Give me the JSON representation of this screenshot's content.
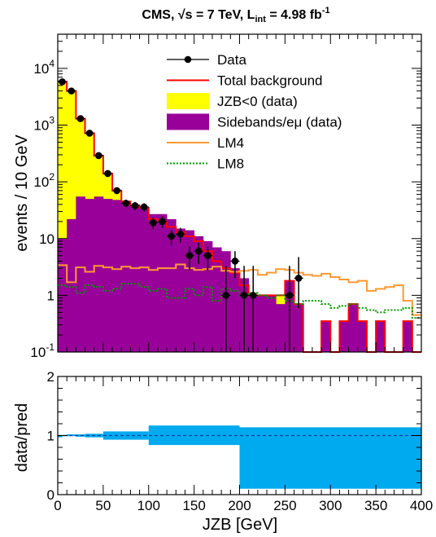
{
  "chart_data": [
    {
      "type": "histogram",
      "title_main": "CMS, √s = 7 TeV, L",
      "title_sub": "int",
      "title_tail": " = 4.98 fb",
      "title_sup": "-1",
      "ylabel": "events / 10 GeV",
      "yscale": "log",
      "ylim": [
        0.1,
        40000
      ],
      "xlim": [
        0,
        400
      ],
      "bin_width": 10,
      "ytick_labels": [
        {
          "base": "10",
          "exp": "-1",
          "value": 0.1
        },
        {
          "base": "1",
          "exp": "",
          "value": 1
        },
        {
          "base": "10",
          "exp": "",
          "value": 10
        },
        {
          "base": "10",
          "exp": "2",
          "value": 100
        },
        {
          "base": "10",
          "exp": "3",
          "value": 1000
        },
        {
          "base": "10",
          "exp": "4",
          "value": 10000
        }
      ],
      "legend_position": "top-right",
      "legend": [
        {
          "label": "Data",
          "style": "marker"
        },
        {
          "label": "Total background",
          "style": "line",
          "color": "#ff0000"
        },
        {
          "label": "JZB<0 (data)",
          "style": "fill",
          "color": "#ffff00"
        },
        {
          "label": "Sidebands/eμ (data)",
          "style": "fill",
          "color": "#990099"
        },
        {
          "label": "LM4",
          "style": "line",
          "color": "#ff9933"
        },
        {
          "label": "LM8",
          "style": "dotted",
          "color": "#009900"
        }
      ],
      "series": [
        {
          "name": "Sidebands/eμ (data)",
          "color": "#990099",
          "values": [
            10,
            22,
            55,
            50,
            55,
            50,
            48,
            45,
            40,
            35,
            27,
            27,
            22,
            15,
            14,
            11,
            9,
            7,
            6,
            3,
            2,
            1,
            1,
            1,
            0.7,
            1.8,
            0.7,
            0,
            0,
            0.35,
            0,
            0.35,
            0.7,
            0.35,
            0,
            0.35,
            0,
            0,
            0.35,
            0
          ]
        },
        {
          "name": "JZB<0 (data)",
          "color": "#ffff00",
          "values": [
            5800,
            4000,
            1300,
            720,
            290,
            140,
            70,
            45,
            38,
            35,
            22,
            20,
            16,
            13,
            11,
            9,
            6,
            4,
            3,
            2.5,
            1.5,
            1,
            1,
            1,
            1,
            0.7,
            0.7,
            0,
            0,
            0.35,
            0,
            0.35,
            0.7,
            0.35,
            0,
            0.35,
            0,
            0,
            0.35,
            0
          ]
        },
        {
          "name": "Total background",
          "color": "#ff0000",
          "values": [
            5800,
            4000,
            1300,
            720,
            290,
            140,
            70,
            45,
            38,
            35,
            22,
            20,
            16,
            13,
            11,
            9,
            6,
            4,
            3,
            2.5,
            1.5,
            1,
            1,
            1,
            1,
            1.8,
            0.7,
            0,
            0,
            0.35,
            0,
            0.35,
            0.7,
            0.35,
            0,
            0.35,
            0,
            0,
            0.35,
            0
          ]
        },
        {
          "name": "LM4",
          "color": "#ff9933",
          "values": [
            3.4,
            1.7,
            3.1,
            2.6,
            3.3,
            3.1,
            2.9,
            3.2,
            3.0,
            3.1,
            2.8,
            3.0,
            3.0,
            3.5,
            3.0,
            2.8,
            2.9,
            3.2,
            2.7,
            2.6,
            2.7,
            2.8,
            2.3,
            2.5,
            2.9,
            2.8,
            2.5,
            2.3,
            2.2,
            2.4,
            2.1,
            1.9,
            1.7,
            1.8,
            1.2,
            1.3,
            1.4,
            1.5,
            0.8,
            0.45
          ]
        },
        {
          "name": "LM8",
          "color": "#009900",
          "values": [
            1.5,
            1.4,
            1.1,
            1.5,
            1.4,
            1.2,
            1.3,
            1.6,
            1.6,
            1.4,
            1.2,
            1.3,
            0.9,
            0.9,
            1.3,
            1.0,
            1.4,
            0.8,
            1.3,
            1.2,
            1.0,
            1.1,
            1.0,
            0.9,
            1.0,
            0.8,
            0.7,
            0.8,
            0.8,
            0.7,
            0.6,
            0.65,
            0.7,
            0.6,
            0.55,
            0.5,
            0.55,
            0.55,
            0.6,
            0.4
          ]
        }
      ],
      "data_points": {
        "name": "Data",
        "x": [
          5,
          15,
          25,
          35,
          45,
          55,
          65,
          75,
          85,
          95,
          105,
          115,
          125,
          135,
          145,
          155,
          165,
          185,
          195,
          205,
          215,
          255,
          265
        ],
        "y": [
          5800,
          4000,
          1300,
          720,
          290,
          140,
          70,
          42,
          38,
          36,
          19,
          20,
          11,
          12,
          5,
          6,
          5,
          1,
          4,
          1,
          1,
          1,
          2
        ]
      }
    },
    {
      "type": "ratio",
      "ylabel": "data/pred",
      "xlabel": "JZB [GeV]",
      "ylim": [
        0,
        2
      ],
      "xlim": [
        0,
        400
      ],
      "yticks": [
        "0",
        "1",
        "2"
      ],
      "xticks": [
        "0",
        "50",
        "100",
        "150",
        "200",
        "250",
        "300",
        "350",
        "400"
      ],
      "reference_line": 1,
      "band_color": "#00aaee",
      "bands": [
        {
          "x0": 0,
          "x1": 5,
          "lo": 0.97,
          "hi": 1.01
        },
        {
          "x0": 5,
          "x1": 10,
          "lo": 0.99,
          "hi": 1.01
        },
        {
          "x0": 10,
          "x1": 20,
          "lo": 0.99,
          "hi": 1.02
        },
        {
          "x0": 20,
          "x1": 30,
          "lo": 0.98,
          "hi": 1.02
        },
        {
          "x0": 30,
          "x1": 50,
          "lo": 0.97,
          "hi": 1.03
        },
        {
          "x0": 50,
          "x1": 100,
          "lo": 0.93,
          "hi": 1.07
        },
        {
          "x0": 100,
          "x1": 200,
          "lo": 0.84,
          "hi": 1.17
        },
        {
          "x0": 200,
          "x1": 400,
          "lo": 0.1,
          "hi": 1.14
        }
      ]
    }
  ]
}
